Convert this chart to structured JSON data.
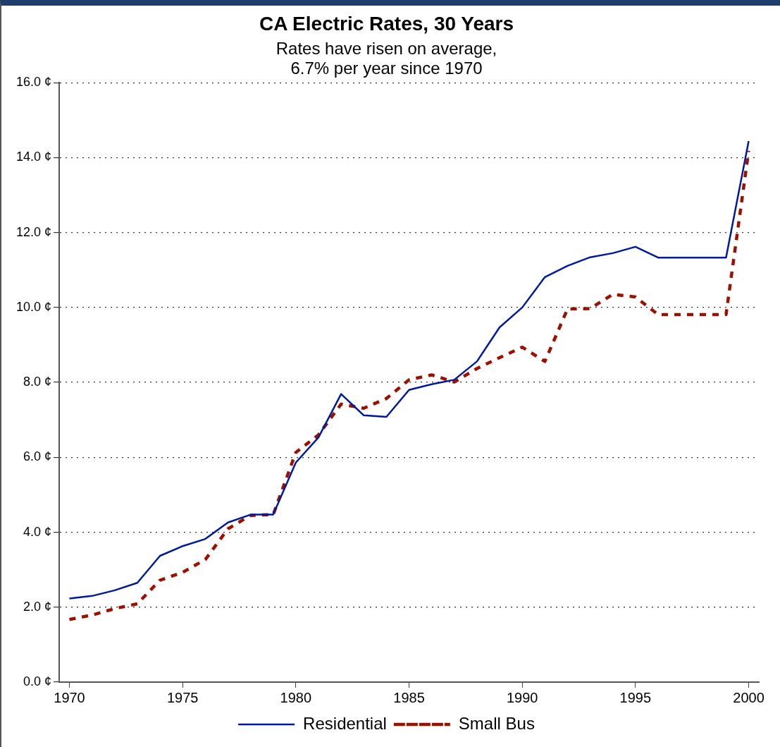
{
  "chart_data": {
    "type": "line",
    "title": "CA Electric Rates, 30 Years",
    "subtitle": "Rates have risen on average,\n6.7% per year since 1970",
    "x": [
      1970,
      1971,
      1972,
      1973,
      1974,
      1975,
      1976,
      1977,
      1978,
      1979,
      1980,
      1981,
      1982,
      1983,
      1984,
      1985,
      1986,
      1987,
      1988,
      1989,
      1990,
      1991,
      1992,
      1993,
      1994,
      1995,
      1996,
      1997,
      1998,
      1999,
      2000
    ],
    "series": [
      {
        "name": "Residential",
        "color": "#001a9c",
        "line_style": "solid",
        "values": [
          2.23,
          2.3,
          2.45,
          2.65,
          3.37,
          3.63,
          3.82,
          4.26,
          4.47,
          4.47,
          5.86,
          6.53,
          7.69,
          7.12,
          7.08,
          7.8,
          7.95,
          8.07,
          8.56,
          9.47,
          10.0,
          10.81,
          11.11,
          11.34,
          11.45,
          11.62,
          11.33,
          11.33,
          11.33,
          11.33,
          14.44
        ]
      },
      {
        "name": "Small Bus",
        "color": "#9c1000",
        "line_style": "dashed",
        "values": [
          1.67,
          1.79,
          1.96,
          2.09,
          2.72,
          2.93,
          3.27,
          4.09,
          4.45,
          4.47,
          6.13,
          6.6,
          7.42,
          7.31,
          7.57,
          8.07,
          8.2,
          8.01,
          8.37,
          8.66,
          8.94,
          8.56,
          9.96,
          9.97,
          10.35,
          10.28,
          9.81,
          9.81,
          9.81,
          9.81,
          14.18
        ]
      }
    ],
    "xlim": [
      1969.55,
      2000.45
    ],
    "xticks": [
      1970,
      1975,
      1980,
      1985,
      1990,
      1995,
      2000
    ],
    "ylim": [
      0,
      16
    ],
    "yticks": [
      {
        "value": 0,
        "label": "0.0 ¢"
      },
      {
        "value": 2,
        "label": "2.0 ¢"
      },
      {
        "value": 4,
        "label": "4.0 ¢"
      },
      {
        "value": 6,
        "label": "6.0 ¢"
      },
      {
        "value": 8,
        "label": "8.0 ¢"
      },
      {
        "value": 10,
        "label": "10.0 ¢"
      },
      {
        "value": 12,
        "label": "12.0 ¢"
      },
      {
        "value": 14,
        "label": "14.0 ¢"
      },
      {
        "value": 16,
        "label": "16.0 ¢"
      }
    ],
    "grid": "y",
    "legend": "bottom",
    "marker": "none"
  }
}
